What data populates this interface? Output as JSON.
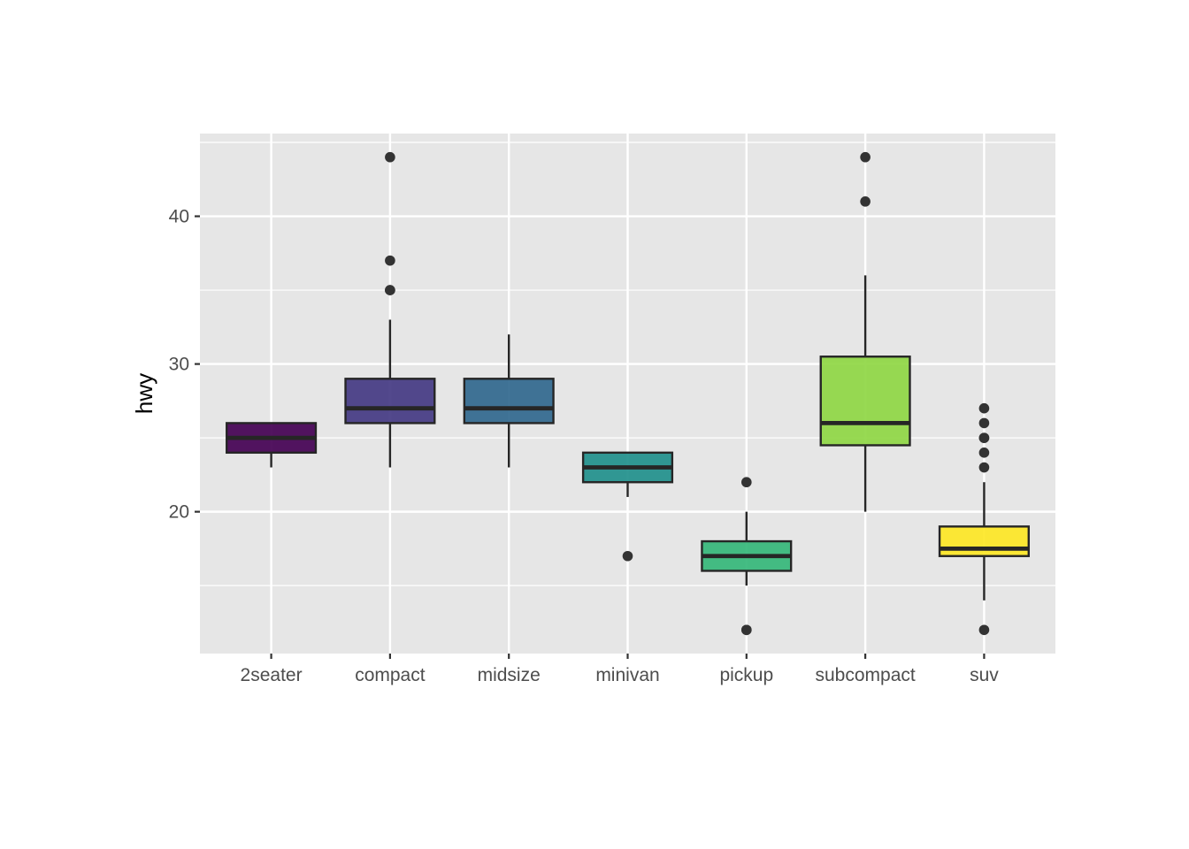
{
  "chart_data": {
    "type": "boxplot",
    "title": "",
    "xlabel": "",
    "ylabel": "hwy",
    "ylim": [
      10.4,
      45.6
    ],
    "y_major_ticks": [
      20,
      30,
      40
    ],
    "y_minor_ticks": [
      15,
      25,
      35,
      45
    ],
    "categories": [
      "2seater",
      "compact",
      "midsize",
      "minivan",
      "pickup",
      "subcompact",
      "suv"
    ],
    "boxes": [
      {
        "category": "2seater",
        "min": 23,
        "q1": 24,
        "median": 25,
        "q3": 26,
        "max": 26,
        "outliers": [],
        "color": "#440154"
      },
      {
        "category": "compact",
        "min": 23,
        "q1": 26,
        "median": 27,
        "q3": 29,
        "max": 33,
        "outliers": [
          35,
          35,
          37,
          44
        ],
        "color": "#443A83"
      },
      {
        "category": "midsize",
        "min": 23,
        "q1": 26,
        "median": 27,
        "q3": 29,
        "max": 32,
        "outliers": [],
        "color": "#31688E"
      },
      {
        "category": "minivan",
        "min": 21,
        "q1": 22,
        "median": 23,
        "q3": 24,
        "max": 24,
        "outliers": [
          17
        ],
        "color": "#21908C"
      },
      {
        "category": "pickup",
        "min": 15,
        "q1": 16,
        "median": 17,
        "q3": 18,
        "max": 20,
        "outliers": [
          12,
          12,
          22
        ],
        "color": "#35B779"
      },
      {
        "category": "subcompact",
        "min": 20,
        "q1": 24.5,
        "median": 26,
        "q3": 30.5,
        "max": 36,
        "outliers": [
          41,
          44
        ],
        "color": "#8FD744"
      },
      {
        "category": "suv",
        "min": 14,
        "q1": 17,
        "median": 17.5,
        "q3": 19,
        "max": 22,
        "outliers": [
          12,
          23,
          24,
          25,
          25,
          26,
          27
        ],
        "color": "#FDE725"
      }
    ],
    "grid": true,
    "legend": "none",
    "panel_color": "#E6E6E6",
    "grid_color": "#FFFFFF",
    "line_color": "#262626",
    "outlier_color": "#333333"
  }
}
